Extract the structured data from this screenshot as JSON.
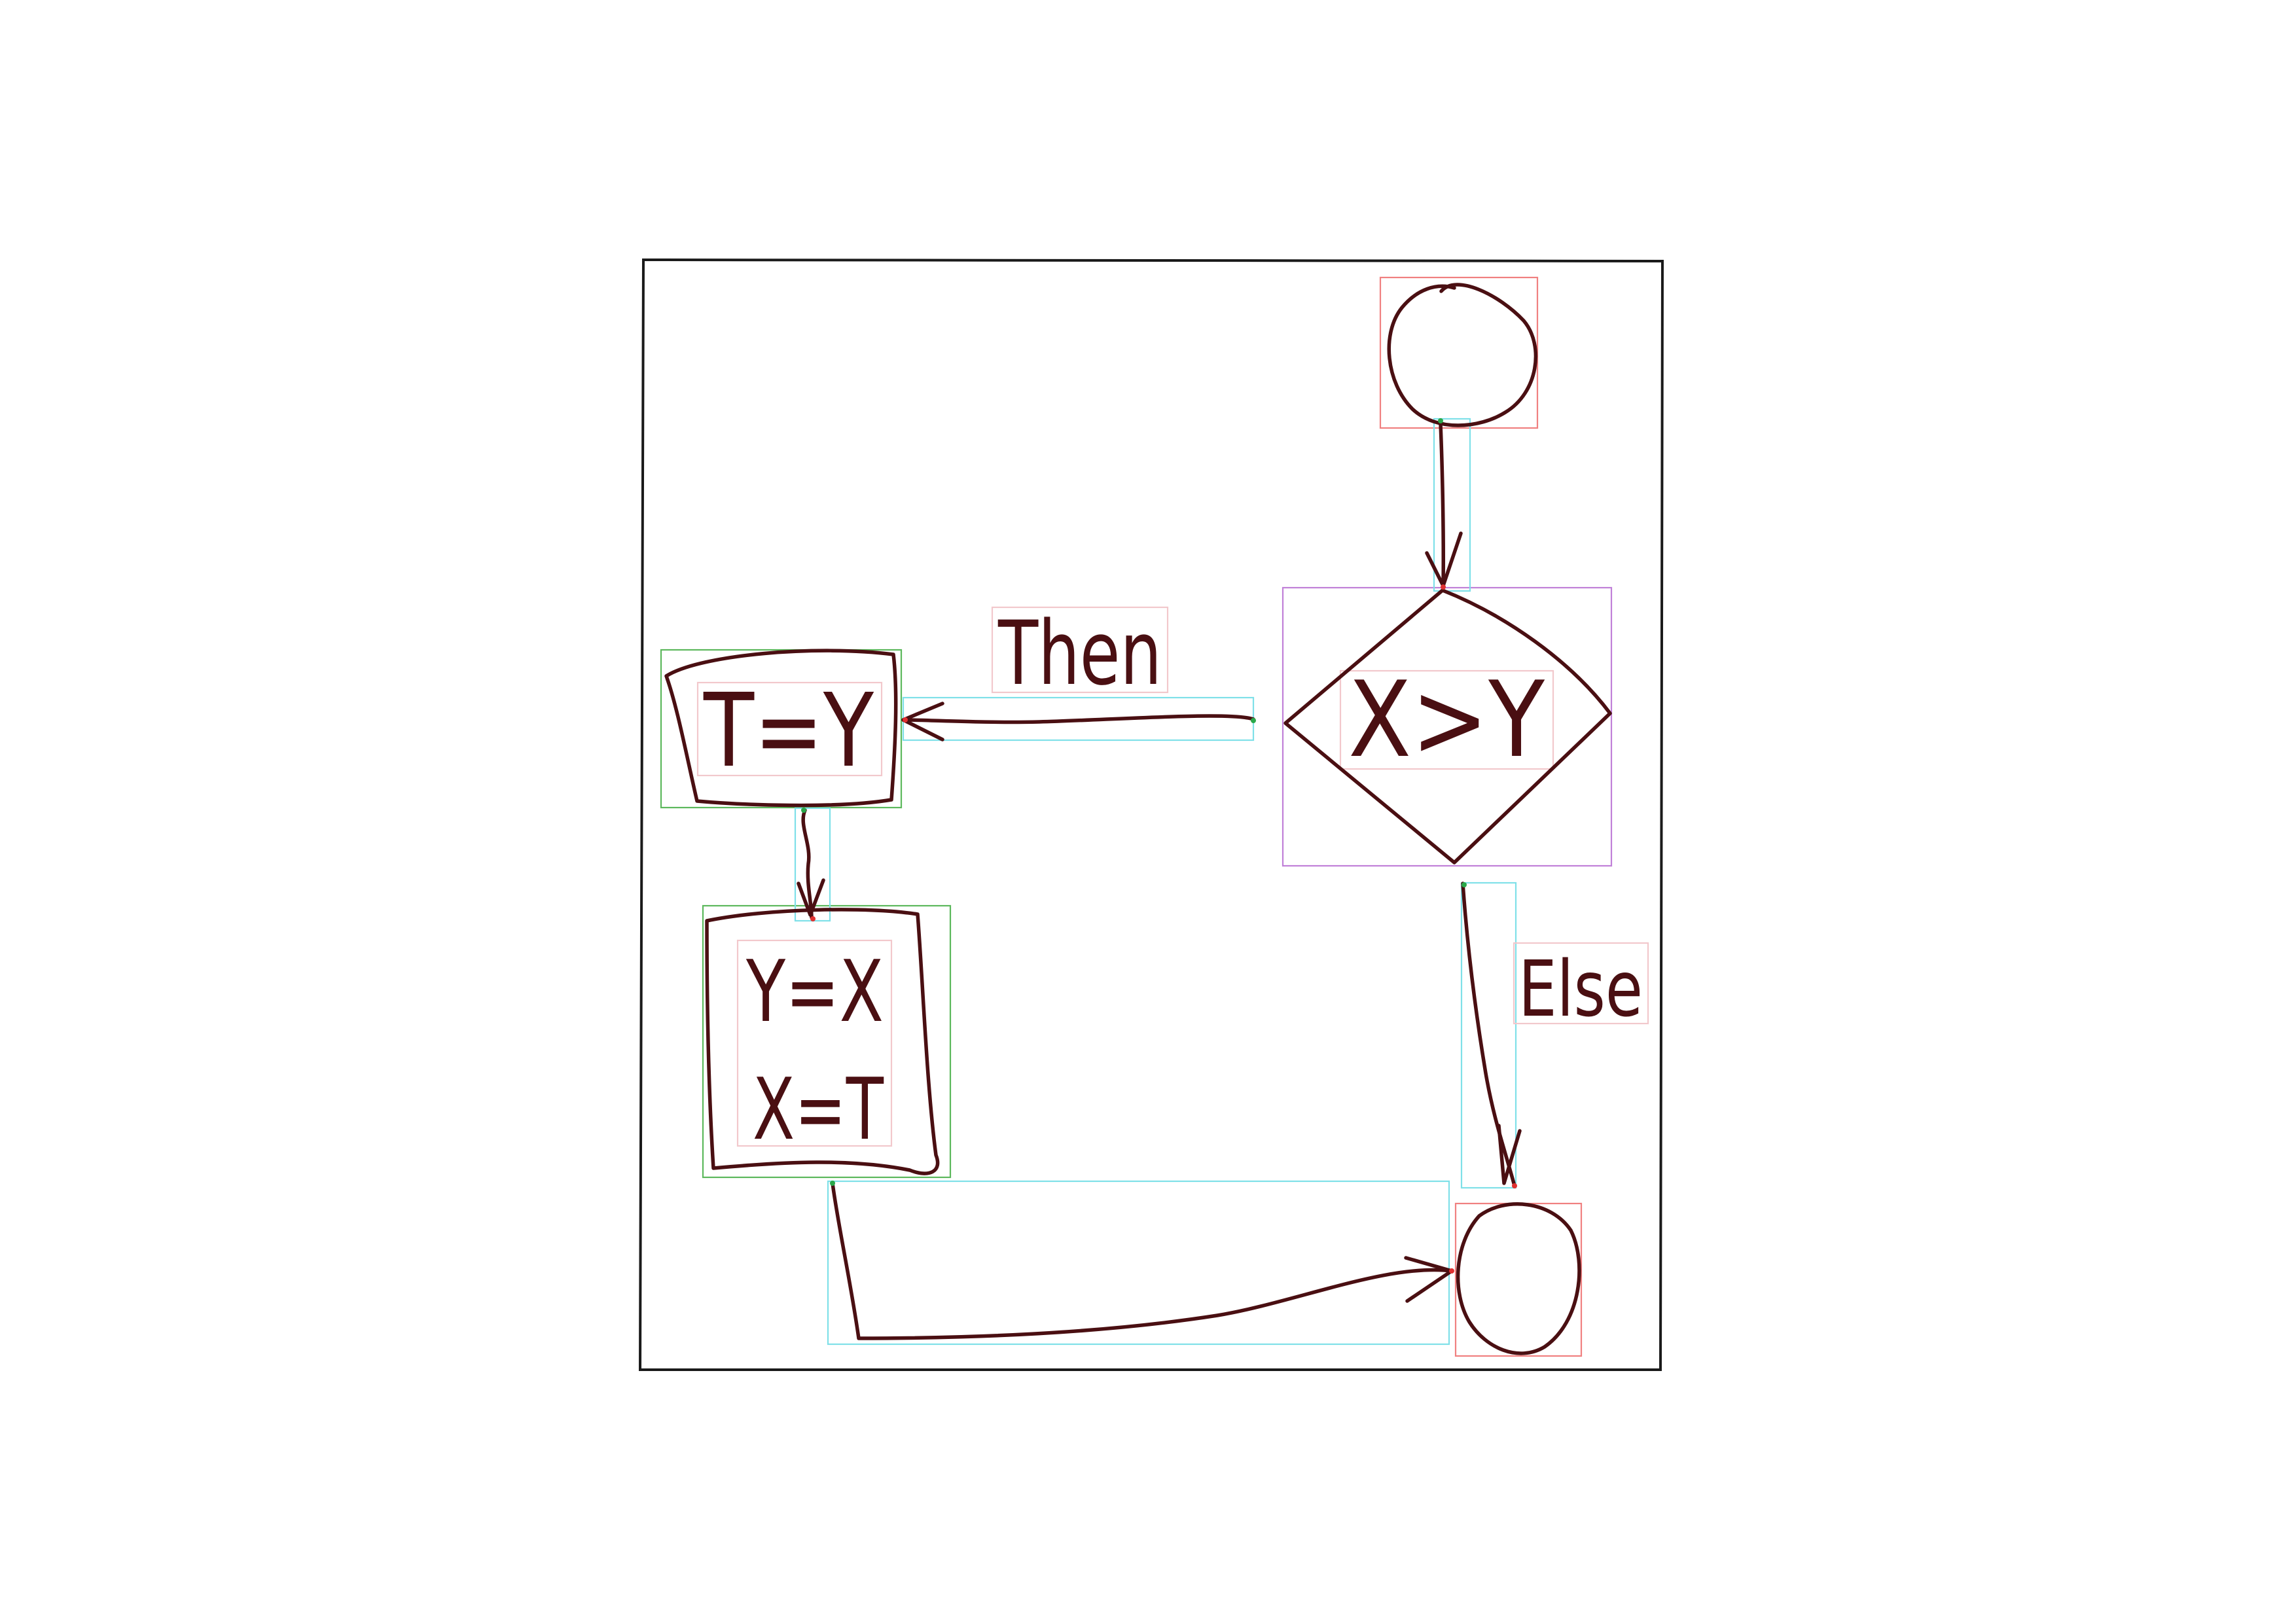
{
  "diagram": {
    "nodes": [
      {
        "id": "start",
        "shape": "circle",
        "label": ""
      },
      {
        "id": "decision",
        "shape": "diamond",
        "label": "X>Y"
      },
      {
        "id": "process1",
        "shape": "rectangle",
        "label": "T=Y"
      },
      {
        "id": "process2",
        "shape": "rectangle",
        "label_line1": "Y=X",
        "label_line2": "X=T"
      },
      {
        "id": "end",
        "shape": "circle",
        "label": ""
      }
    ],
    "edges": [
      {
        "from": "start",
        "to": "decision",
        "label": ""
      },
      {
        "from": "decision",
        "to": "process1",
        "label": "Then"
      },
      {
        "from": "process1",
        "to": "process2",
        "label": ""
      },
      {
        "from": "decision",
        "to": "end",
        "label": "Else"
      },
      {
        "from": "process2",
        "to": "end",
        "label": ""
      }
    ],
    "annotation_colors": {
      "circle_box": "#f08080",
      "decision_box": "#c080d8",
      "process_box": "#5cb85c",
      "arrow_box": "#7fe0e8",
      "text_box": "#f2c8cc",
      "ink": "#4a0f12",
      "frame": "#1a1a1a"
    }
  }
}
